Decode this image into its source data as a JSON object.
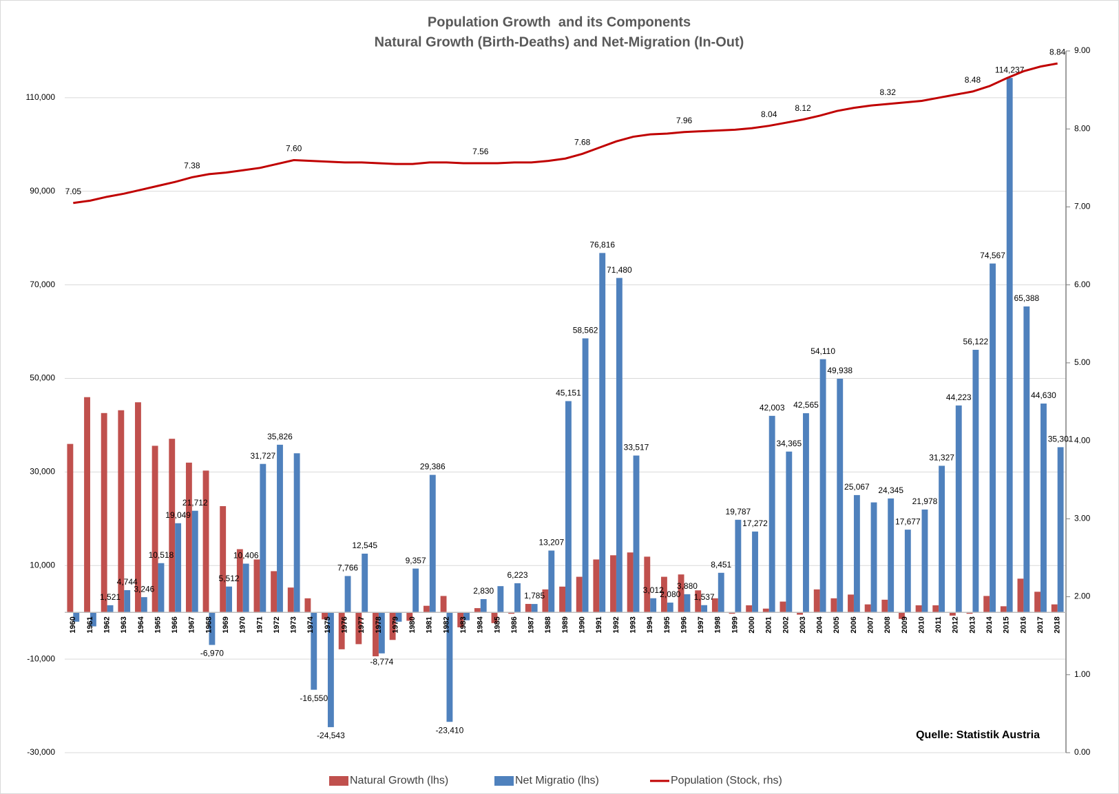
{
  "chart_data": {
    "type": "bar",
    "title": "Population Growth  and its Components",
    "subtitle": "Natural Growth (Birth-Deaths) and Net-Migration (In-Out)",
    "annotation": "Quelle: Statistik Austria",
    "categories": [
      "1960",
      "1961",
      "1962",
      "1963",
      "1964",
      "1965",
      "1966",
      "1967",
      "1968",
      "1969",
      "1970",
      "1971",
      "1972",
      "1973",
      "1974",
      "1975",
      "1976",
      "1977",
      "1978",
      "1979",
      "1980",
      "1981",
      "1982",
      "1983",
      "1984",
      "1985",
      "1986",
      "1987",
      "1988",
      "1989",
      "1990",
      "1991",
      "1992",
      "1993",
      "1994",
      "1995",
      "1996",
      "1997",
      "1998",
      "1999",
      "2000",
      "2001",
      "2002",
      "2003",
      "2004",
      "2005",
      "2006",
      "2007",
      "2008",
      "2009",
      "2010",
      "2011",
      "2012",
      "2013",
      "2014",
      "2015",
      "2016",
      "2017",
      "2018"
    ],
    "series": [
      {
        "name": "Natural Growth (lhs)",
        "color": "#c0504d",
        "values": [
          36000,
          46000,
          42600,
          43200,
          44900,
          35600,
          37100,
          32000,
          30300,
          22700,
          13500,
          11300,
          8800,
          5300,
          3000,
          -1500,
          -7900,
          -6800,
          -9400,
          -5900,
          -1800,
          1400,
          3500,
          -3200,
          900,
          -2300,
          -300,
          1800,
          4900,
          5500,
          7600,
          11300,
          12200,
          12800,
          11900,
          7600,
          8100,
          4700,
          3000,
          -300,
          1500,
          800,
          2300,
          -500,
          4900,
          3000,
          3800,
          1700,
          2700,
          -1400,
          1500,
          1500,
          -700,
          -300,
          3500,
          1300,
          7200,
          4400,
          1700
        ]
      },
      {
        "name": "Net Migratio (lhs)",
        "color": "#4f81bd",
        "values": [
          -2000,
          -3000,
          1521,
          4744,
          3246,
          10518,
          19049,
          21712,
          -6970,
          5512,
          10406,
          31727,
          35826,
          34000,
          -16550,
          -24543,
          7766,
          12545,
          -8774,
          -2000,
          9357,
          29386,
          -23410,
          -1700,
          2830,
          5600,
          6223,
          1785,
          13207,
          45151,
          58562,
          76816,
          71480,
          33517,
          3012,
          2080,
          3880,
          1537,
          8451,
          19787,
          17272,
          42003,
          34365,
          42565,
          54110,
          49938,
          25067,
          23500,
          24345,
          17677,
          21978,
          31327,
          44223,
          56122,
          74567,
          114237,
          65388,
          44630,
          35301
        ],
        "value_labels": [
          null,
          null,
          "1,521",
          "4,744",
          "3,246",
          "10,518",
          "19,049",
          "21,712",
          "-6,970",
          "5,512",
          "10,406",
          "31,727",
          "35,826",
          null,
          "-16,550",
          "-24,543",
          "7,766",
          "12,545",
          "-8,774",
          null,
          "9,357",
          "29,386",
          "-23,410",
          null,
          "2,830",
          null,
          "6,223",
          "1,785",
          "13,207",
          "45,151",
          "58,562",
          "76,816",
          "71,480",
          "33,517",
          "3,012",
          "2,080",
          "3,880",
          "1,537",
          "8,451",
          "19,787",
          "17,272",
          "42,003",
          "34,365",
          "42,565",
          "54,110",
          "49,938",
          "25,067",
          null,
          "24,345",
          "17,677",
          "21,978",
          "31,327",
          "44,223",
          "56,122",
          "74,567",
          "114,237",
          "65,388",
          "44,630",
          "35,301"
        ]
      },
      {
        "name": "Population (Stock, rhs)",
        "color": "#c00000",
        "type": "line",
        "axis": "y2",
        "values": [
          7.05,
          7.08,
          7.13,
          7.17,
          7.22,
          7.27,
          7.32,
          7.38,
          7.42,
          7.44,
          7.47,
          7.5,
          7.55,
          7.6,
          7.59,
          7.58,
          7.57,
          7.57,
          7.56,
          7.55,
          7.55,
          7.57,
          7.57,
          7.56,
          7.56,
          7.56,
          7.57,
          7.57,
          7.59,
          7.62,
          7.68,
          7.76,
          7.84,
          7.9,
          7.93,
          7.94,
          7.96,
          7.97,
          7.98,
          7.99,
          8.01,
          8.04,
          8.08,
          8.12,
          8.17,
          8.23,
          8.27,
          8.3,
          8.32,
          8.34,
          8.36,
          8.4,
          8.44,
          8.48,
          8.55,
          8.65,
          8.74,
          8.8,
          8.84
        ],
        "value_labels": [
          "7.05",
          null,
          null,
          null,
          null,
          null,
          null,
          "7.38",
          null,
          null,
          null,
          null,
          null,
          "7.60",
          null,
          null,
          null,
          null,
          null,
          null,
          null,
          null,
          null,
          null,
          "7.56",
          null,
          null,
          null,
          null,
          null,
          "7.68",
          null,
          null,
          null,
          null,
          null,
          "7.96",
          null,
          null,
          null,
          null,
          "8.04",
          null,
          "8.12",
          null,
          null,
          null,
          null,
          "8.32",
          null,
          null,
          null,
          null,
          "8.48",
          null,
          null,
          null,
          null,
          "8.84"
        ]
      }
    ],
    "ylim": [
      -30000,
      120000
    ],
    "yticks": [
      {
        "value": -30000,
        "label": "-30,000"
      },
      {
        "value": -10000,
        "label": "-10,000"
      },
      {
        "value": 10000,
        "label": "10,000"
      },
      {
        "value": 30000,
        "label": "30,000"
      },
      {
        "value": 50000,
        "label": "50,000"
      },
      {
        "value": 70000,
        "label": "70,000"
      },
      {
        "value": 90000,
        "label": "90,000"
      },
      {
        "value": 110000,
        "label": "110,000"
      }
    ],
    "y2lim": [
      0,
      9
    ],
    "y2ticks": [
      {
        "value": 0,
        "label": "0.00"
      },
      {
        "value": 1,
        "label": "1.00"
      },
      {
        "value": 2,
        "label": "2.00"
      },
      {
        "value": 3,
        "label": "3.00"
      },
      {
        "value": 4,
        "label": "4.00"
      },
      {
        "value": 5,
        "label": "5.00"
      },
      {
        "value": 6,
        "label": "6.00"
      },
      {
        "value": 7,
        "label": "7.00"
      },
      {
        "value": 8,
        "label": "8.00"
      },
      {
        "value": 9,
        "label": "9.00"
      }
    ],
    "grid": true,
    "legend": "bottom"
  }
}
